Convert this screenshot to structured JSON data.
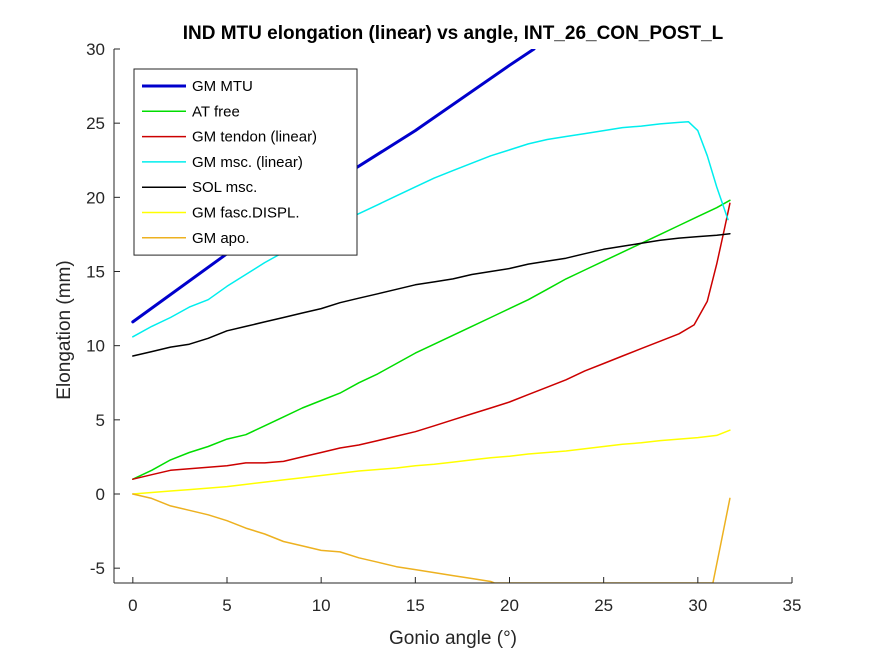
{
  "chart_data": {
    "type": "line",
    "title": "IND MTU elongation (linear) vs angle, INT_26_CON_POST_L",
    "xlabel": "Gonio angle (°)",
    "ylabel": "Elongation (mm)",
    "xlim": [
      -1,
      35
    ],
    "ylim": [
      -6,
      30
    ],
    "xticks": [
      0,
      5,
      10,
      15,
      20,
      25,
      30,
      35
    ],
    "yticks": [
      -5,
      0,
      5,
      10,
      15,
      20,
      25,
      30
    ],
    "grid": false,
    "legend_position": "top-left",
    "series": [
      {
        "name": "GM MTU",
        "color": "#0000cc",
        "width": 3,
        "x": [
          0,
          5,
          10,
          15,
          20,
          21.3
        ],
        "y": [
          11.6,
          16.2,
          20.5,
          24.5,
          28.9,
          30.0
        ]
      },
      {
        "name": "AT free",
        "color": "#00dd00",
        "width": 1.5,
        "x": [
          0,
          1,
          2,
          3,
          4,
          5,
          6,
          7,
          8,
          9,
          10,
          11,
          12,
          13,
          14,
          15,
          16,
          17,
          18,
          19,
          20,
          21,
          22,
          23,
          24,
          25,
          26,
          27,
          28,
          29,
          30,
          31,
          31.7
        ],
        "y": [
          1.0,
          1.6,
          2.3,
          2.8,
          3.2,
          3.7,
          4.0,
          4.6,
          5.2,
          5.8,
          6.3,
          6.8,
          7.5,
          8.1,
          8.8,
          9.5,
          10.1,
          10.7,
          11.3,
          11.9,
          12.5,
          13.1,
          13.8,
          14.5,
          15.1,
          15.7,
          16.3,
          16.9,
          17.5,
          18.1,
          18.7,
          19.3,
          19.8
        ]
      },
      {
        "name": "GM tendon (linear)",
        "color": "#cc0000",
        "width": 1.5,
        "x": [
          0,
          1,
          2,
          3,
          4,
          5,
          6,
          7,
          8,
          9,
          10,
          11,
          12,
          13,
          14,
          15,
          16,
          17,
          18,
          19,
          20,
          21,
          22,
          23,
          24,
          25,
          26,
          27,
          28,
          29,
          29.8,
          30.5,
          31.0,
          31.4,
          31.7
        ],
        "y": [
          1.0,
          1.3,
          1.6,
          1.7,
          1.8,
          1.9,
          2.1,
          2.1,
          2.2,
          2.5,
          2.8,
          3.1,
          3.3,
          3.6,
          3.9,
          4.2,
          4.6,
          5.0,
          5.4,
          5.8,
          6.2,
          6.7,
          7.2,
          7.7,
          8.3,
          8.8,
          9.3,
          9.8,
          10.3,
          10.8,
          11.4,
          13.0,
          15.5,
          17.8,
          19.6
        ]
      },
      {
        "name": "GM msc. (linear)",
        "color": "#00eeee",
        "width": 1.5,
        "x": [
          0,
          1,
          2,
          3,
          4,
          5,
          6,
          7,
          8,
          9,
          10,
          11,
          12,
          13,
          14,
          15,
          16,
          17,
          18,
          19,
          20,
          21,
          22,
          23,
          24,
          25,
          26,
          27,
          28,
          29,
          29.5,
          30,
          30.5,
          31,
          31.6
        ],
        "y": [
          10.6,
          11.3,
          11.9,
          12.6,
          13.1,
          14.0,
          14.8,
          15.6,
          16.3,
          17.1,
          17.7,
          18.3,
          18.9,
          19.5,
          20.1,
          20.7,
          21.3,
          21.8,
          22.3,
          22.8,
          23.2,
          23.6,
          23.9,
          24.1,
          24.3,
          24.5,
          24.7,
          24.8,
          24.95,
          25.05,
          25.1,
          24.5,
          22.8,
          20.7,
          18.5
        ]
      },
      {
        "name": "SOL msc.",
        "color": "#000000",
        "width": 1.5,
        "x": [
          0,
          1,
          2,
          3,
          4,
          5,
          6,
          7,
          8,
          9,
          10,
          11,
          12,
          13,
          14,
          15,
          16,
          17,
          18,
          19,
          20,
          21,
          22,
          23,
          24,
          25,
          26,
          27,
          28,
          29,
          30,
          31,
          31.7
        ],
        "y": [
          9.3,
          9.6,
          9.9,
          10.1,
          10.5,
          11.0,
          11.3,
          11.6,
          11.9,
          12.2,
          12.5,
          12.9,
          13.2,
          13.5,
          13.8,
          14.1,
          14.3,
          14.5,
          14.8,
          15.0,
          15.2,
          15.5,
          15.7,
          15.9,
          16.2,
          16.5,
          16.7,
          16.9,
          17.1,
          17.25,
          17.35,
          17.45,
          17.55
        ]
      },
      {
        "name": "GM fasc.DISPL.",
        "color": "#ffff00",
        "width": 1.5,
        "x": [
          0,
          1,
          2,
          3,
          4,
          5,
          6,
          7,
          8,
          9,
          10,
          11,
          12,
          13,
          14,
          15,
          16,
          17,
          18,
          19,
          20,
          21,
          22,
          23,
          24,
          25,
          26,
          27,
          28,
          29,
          30,
          31,
          31.7
        ],
        "y": [
          0.0,
          0.1,
          0.2,
          0.3,
          0.4,
          0.5,
          0.65,
          0.8,
          0.95,
          1.1,
          1.25,
          1.4,
          1.55,
          1.65,
          1.75,
          1.9,
          2.0,
          2.15,
          2.3,
          2.45,
          2.55,
          2.7,
          2.8,
          2.9,
          3.05,
          3.2,
          3.35,
          3.45,
          3.6,
          3.7,
          3.8,
          3.95,
          4.3
        ]
      },
      {
        "name": "GM apo.",
        "color": "#edb120",
        "width": 1.5,
        "x": [
          0,
          1,
          2,
          3,
          4,
          5,
          6,
          7,
          8,
          9,
          10,
          11,
          12,
          13,
          14,
          15,
          16,
          17,
          18,
          19,
          19.2,
          30.8,
          31.2,
          31.7
        ],
        "y": [
          0.0,
          -0.3,
          -0.8,
          -1.1,
          -1.4,
          -1.8,
          -2.3,
          -2.7,
          -3.2,
          -3.5,
          -3.8,
          -3.9,
          -4.3,
          -4.6,
          -4.9,
          -5.1,
          -5.3,
          -5.5,
          -5.7,
          -5.9,
          -6.0,
          -6.0,
          -3.5,
          -0.3
        ]
      }
    ]
  }
}
